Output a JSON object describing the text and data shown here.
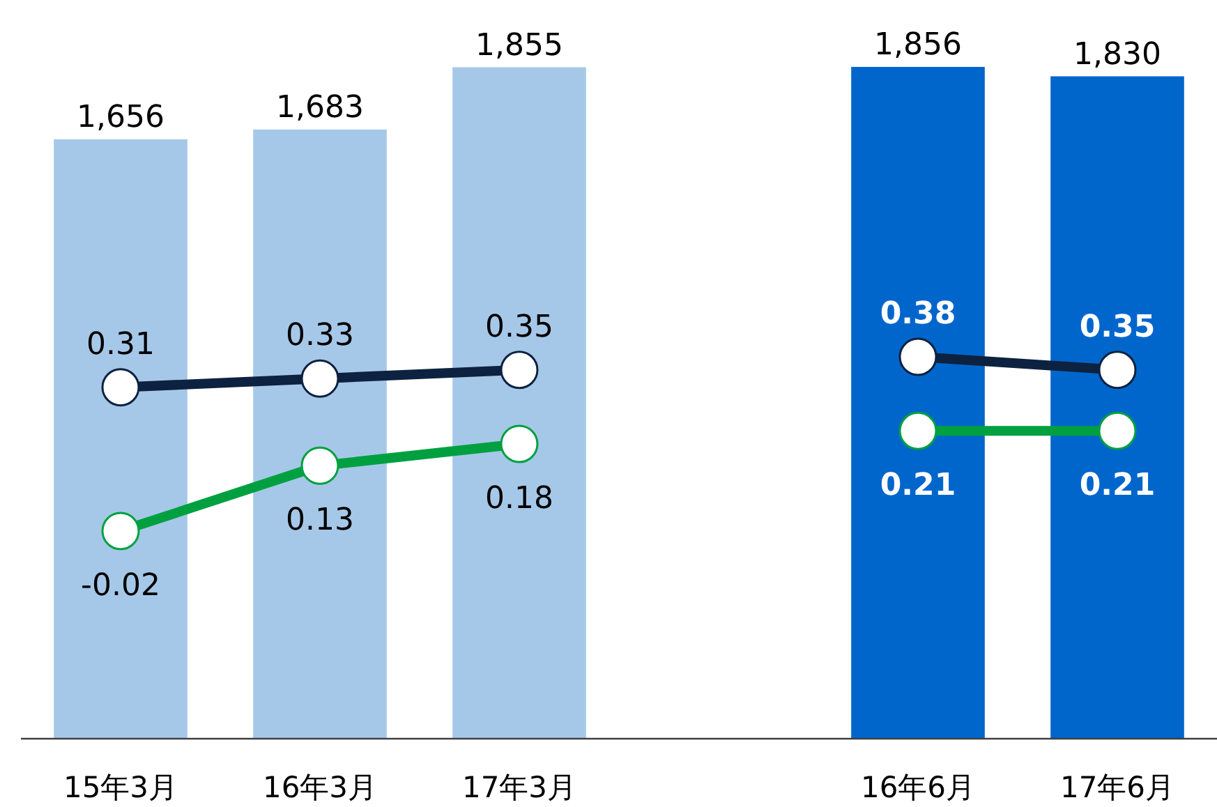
{
  "chart_data": {
    "type": "bar",
    "categories": [
      "15年3月",
      "16年3月",
      "17年3月",
      null,
      "16年6月",
      "17年6月"
    ],
    "series": [
      {
        "colors": [
          "#a6c8e8",
          "#a6c8e8",
          "#a6c8e8",
          null,
          "#0066cc",
          "#0066cc"
        ],
        "values": [
          1656,
          1683,
          1855,
          null,
          1856,
          1830
        ],
        "value_labels": [
          "1,656",
          "1,683",
          "1,855",
          null,
          "1,856",
          "1,830"
        ]
      },
      {
        "type": "line",
        "axis": "y2",
        "color": "#0d2240",
        "marker": "circle",
        "values": [
          0.31,
          0.33,
          0.35,
          null,
          0.38,
          0.35
        ]
      },
      {
        "type": "line",
        "axis": "y2",
        "color": "#00a040",
        "marker": "circle",
        "values": [
          -0.02,
          0.13,
          0.18,
          null,
          0.21,
          0.21
        ]
      }
    ],
    "tick_labels": "x",
    "data_labels": true
  }
}
